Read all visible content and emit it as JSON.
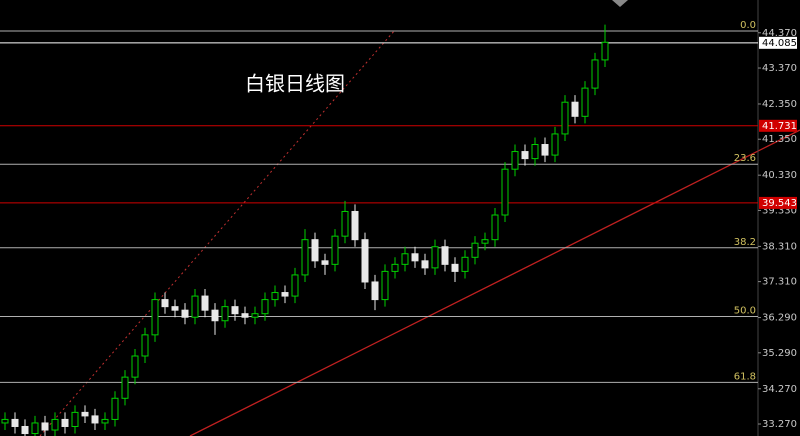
{
  "chart_data": {
    "type": "candlestick",
    "title": "白银日线图",
    "ylim": [
      32.93,
      45.3
    ],
    "yticks": [
      {
        "value": 44.37,
        "label": "44.370"
      },
      {
        "value": 43.37,
        "label": "43.370"
      },
      {
        "value": 42.35,
        "label": "42.350"
      },
      {
        "value": 41.35,
        "label": "41.350"
      },
      {
        "value": 40.33,
        "label": "40.330"
      },
      {
        "value": 39.33,
        "label": "39.330"
      },
      {
        "value": 38.31,
        "label": "38.310"
      },
      {
        "value": 37.31,
        "label": "37.310"
      },
      {
        "value": 36.29,
        "label": "36.290"
      },
      {
        "value": 35.29,
        "label": "35.290"
      },
      {
        "value": 34.27,
        "label": "34.270"
      },
      {
        "value": 33.27,
        "label": "33.270"
      }
    ],
    "up_color": "#00d000",
    "down_color": "#e8e8e8",
    "open": [
      33.3,
      33.4,
      33.2,
      33.0,
      33.3,
      33.1,
      33.4,
      33.2,
      33.6,
      33.5,
      33.3,
      33.4,
      34.0,
      34.6,
      35.2,
      35.8,
      36.8,
      36.6,
      36.5,
      36.3,
      36.9,
      36.5,
      36.2,
      36.6,
      36.4,
      36.3,
      36.4,
      36.8,
      37.0,
      36.9,
      37.5,
      38.5,
      37.9,
      37.8,
      38.6,
      39.3,
      38.5,
      37.3,
      36.8,
      37.6,
      37.8,
      38.1,
      37.9,
      37.7,
      38.3,
      37.8,
      37.6,
      38.0,
      38.4,
      38.5,
      39.2,
      40.5,
      41.0,
      40.8,
      41.2,
      40.9,
      41.5,
      42.4,
      42.0,
      42.8,
      43.6
    ],
    "high": [
      33.6,
      33.6,
      33.4,
      33.5,
      33.5,
      33.6,
      33.6,
      33.8,
      33.8,
      33.7,
      33.6,
      34.2,
      34.8,
      35.4,
      36.0,
      37.0,
      37.0,
      36.8,
      36.7,
      37.1,
      37.1,
      36.7,
      36.8,
      36.8,
      36.6,
      36.6,
      37.0,
      37.2,
      37.2,
      37.7,
      38.8,
      38.7,
      38.1,
      38.8,
      39.6,
      39.5,
      38.7,
      37.5,
      37.8,
      38.0,
      38.3,
      38.3,
      38.1,
      38.5,
      38.5,
      38.0,
      38.2,
      38.6,
      38.7,
      39.4,
      40.7,
      41.2,
      41.2,
      41.4,
      41.4,
      41.7,
      42.6,
      42.6,
      43.0,
      43.8,
      44.6
    ],
    "low": [
      33.1,
      33.0,
      32.8,
      32.8,
      32.9,
      32.9,
      33.0,
      33.0,
      33.3,
      33.1,
      33.1,
      33.2,
      33.8,
      34.4,
      35.0,
      35.6,
      36.4,
      36.3,
      36.1,
      36.1,
      36.3,
      35.8,
      36.0,
      36.2,
      36.1,
      36.1,
      36.2,
      36.6,
      36.7,
      36.7,
      37.3,
      37.7,
      37.5,
      37.6,
      38.4,
      38.3,
      37.1,
      36.5,
      36.6,
      37.4,
      37.6,
      37.7,
      37.5,
      37.5,
      37.6,
      37.3,
      37.4,
      37.8,
      38.2,
      38.3,
      39.0,
      40.3,
      40.6,
      40.6,
      40.7,
      40.7,
      41.3,
      41.8,
      41.8,
      42.6,
      43.4
    ],
    "close": [
      33.4,
      33.2,
      33.0,
      33.3,
      33.1,
      33.4,
      33.2,
      33.6,
      33.5,
      33.3,
      33.4,
      34.0,
      34.6,
      35.2,
      35.8,
      36.8,
      36.6,
      36.5,
      36.3,
      36.9,
      36.5,
      36.2,
      36.6,
      36.4,
      36.3,
      36.4,
      36.8,
      37.0,
      36.9,
      37.5,
      38.5,
      37.9,
      37.8,
      38.6,
      39.3,
      38.5,
      37.3,
      36.8,
      37.6,
      37.8,
      38.1,
      37.9,
      37.7,
      38.3,
      37.8,
      37.6,
      38.0,
      38.4,
      38.5,
      39.2,
      40.5,
      41.0,
      40.8,
      41.2,
      40.9,
      41.5,
      42.4,
      42.0,
      42.8,
      43.6,
      44.1
    ],
    "fib_levels": [
      {
        "label": "0.0",
        "value": 44.42
      },
      {
        "label": "23.6",
        "value": 40.64
      },
      {
        "label": "38.2",
        "value": 38.27
      },
      {
        "label": "50.0",
        "value": 36.32
      },
      {
        "label": "61.8",
        "value": 34.45
      }
    ],
    "fib_color": "#b0b0b0",
    "fib_label_color": "#d0c060",
    "price_lines": [
      {
        "value": 44.085,
        "color": "#ffffff",
        "text_color": "#000000"
      },
      {
        "value": 41.731,
        "color": "#d00000",
        "text_color": "#ffffff"
      },
      {
        "value": 39.543,
        "color": "#d00000",
        "text_color": "#ffffff"
      }
    ]
  }
}
